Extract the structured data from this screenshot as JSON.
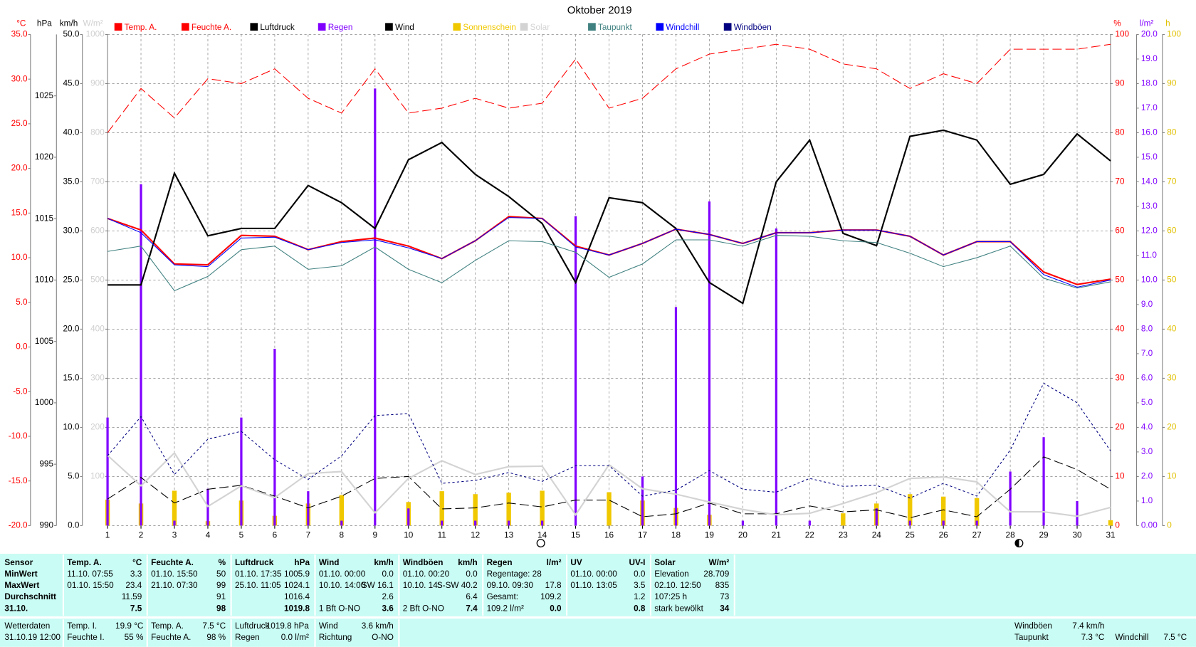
{
  "chart_data": {
    "type": "line",
    "title": "Oktober 2019",
    "categories": [
      "1",
      "2",
      "3",
      "4",
      "5",
      "6",
      "7",
      "8",
      "9",
      "10",
      "11",
      "12",
      "13",
      "14",
      "15",
      "16",
      "17",
      "18",
      "19",
      "20",
      "21",
      "22",
      "23",
      "24",
      "25",
      "26",
      "27",
      "28",
      "29",
      "30",
      "31"
    ],
    "axes": [
      {
        "label": "°C",
        "side": "left",
        "color": "#ff0000",
        "lim": [
          -20,
          35
        ],
        "ticks": [
          {
            "value": -20,
            "label": "-20.0"
          },
          {
            "value": -15,
            "label": "-15.0"
          },
          {
            "value": -10,
            "label": "-10.0"
          },
          {
            "value": -5,
            "label": "-5.0"
          },
          {
            "value": 0,
            "label": "0.0"
          },
          {
            "value": 5,
            "label": "5.0"
          },
          {
            "value": 10,
            "label": "10.0"
          },
          {
            "value": 15,
            "label": "15.0"
          },
          {
            "value": 20,
            "label": "20.0"
          },
          {
            "value": 25,
            "label": "25.0"
          },
          {
            "value": 30,
            "label": "30.0"
          },
          {
            "value": 35,
            "label": "35.0"
          }
        ]
      },
      {
        "label": "hPa",
        "side": "left",
        "color": "#000000",
        "lim": [
          990,
          1030
        ],
        "ticks": [
          990,
          995,
          1000,
          1005,
          1010,
          1015,
          1020,
          1025
        ]
      },
      {
        "label": "km/h",
        "side": "left",
        "color": "#000000",
        "grid": true,
        "lim": [
          0,
          50
        ],
        "ticks": [
          {
            "value": 0,
            "label": "0.0"
          },
          {
            "value": 5,
            "label": "5.0"
          },
          {
            "value": 10,
            "label": "10.0"
          },
          {
            "value": 15,
            "label": "15.0"
          },
          {
            "value": 20,
            "label": "20.0"
          },
          {
            "value": 25,
            "label": "25.0"
          },
          {
            "value": 30,
            "label": "30.0"
          },
          {
            "value": 35,
            "label": "35.0"
          },
          {
            "value": 40,
            "label": "40.0"
          },
          {
            "value": 45,
            "label": "45.0"
          },
          {
            "value": 50,
            "label": "50.0"
          }
        ]
      },
      {
        "label": "W/m²",
        "side": "left",
        "color": "#d0d0d0",
        "lim": [
          0,
          1000
        ],
        "ticks": [
          100,
          200,
          300,
          400,
          500,
          600,
          700,
          800,
          900,
          1000
        ]
      },
      {
        "label": "%",
        "side": "right",
        "color": "#ff0000",
        "lim": [
          0,
          100
        ],
        "ticks": [
          0,
          10,
          20,
          30,
          40,
          50,
          60,
          70,
          80,
          90,
          100
        ]
      },
      {
        "label": "l/m²",
        "side": "right",
        "color": "#8000ff",
        "lim": [
          0,
          20
        ],
        "ticks": [
          {
            "value": 0,
            "label": "0.00"
          },
          {
            "value": 1,
            "label": "1.0"
          },
          {
            "value": 2,
            "label": "2.0"
          },
          {
            "value": 3,
            "label": "3.0"
          },
          {
            "value": 4,
            "label": "4.0"
          },
          {
            "value": 5,
            "label": "5.0"
          },
          {
            "value": 6,
            "label": "6.0"
          },
          {
            "value": 7,
            "label": "7.0"
          },
          {
            "value": 8,
            "label": "8.0"
          },
          {
            "value": 9,
            "label": "9.0"
          },
          {
            "value": 10,
            "label": "10.0"
          },
          {
            "value": 11,
            "label": "11.0"
          },
          {
            "value": 12,
            "label": "12.0"
          },
          {
            "value": 13,
            "label": "13.0"
          },
          {
            "value": 14,
            "label": "14.0"
          },
          {
            "value": 15,
            "label": "15.0"
          },
          {
            "value": 16,
            "label": "16.0"
          },
          {
            "value": 17,
            "label": "17.0"
          },
          {
            "value": 18,
            "label": "18.0"
          },
          {
            "value": 19,
            "label": "19.0"
          },
          {
            "value": 20,
            "label": "20.0"
          }
        ]
      },
      {
        "label": "h",
        "side": "right",
        "color": "#e0c000",
        "lim": [
          0,
          100
        ],
        "ticks": [
          0,
          10,
          20,
          30,
          40,
          50,
          60,
          70,
          80,
          90,
          100
        ]
      }
    ],
    "series": [
      {
        "name": "Temp. A.",
        "color": "#ff0000",
        "axis": "°C",
        "style": "solid",
        "width": 2,
        "values": [
          14.4,
          13.1,
          9.3,
          9.2,
          12.5,
          12.4,
          10.9,
          11.8,
          12.2,
          11.3,
          9.9,
          11.9,
          14.6,
          14.4,
          11.3,
          10.3,
          11.6,
          13.2,
          12.6,
          11.6,
          12.8,
          12.8,
          13.1,
          13.1,
          12.4,
          10.3,
          11.8,
          11.8,
          8.4,
          7.0,
          7.6
        ]
      },
      {
        "name": "Feuchte A.",
        "color": "#ff0000",
        "axis": "%",
        "style": "dashed",
        "width": 1,
        "values": [
          80,
          89,
          83,
          91,
          90,
          93,
          87,
          84,
          93,
          84,
          85,
          87,
          85,
          86,
          95,
          85,
          87,
          93,
          96,
          97,
          98,
          97,
          94,
          93,
          89,
          92,
          90,
          97,
          97,
          97,
          98
        ]
      },
      {
        "name": "Luftdruck",
        "color": "#000000",
        "axis": "hPa",
        "style": "solid",
        "width": 2,
        "values": [
          1009.6,
          1009.6,
          1018.7,
          1013.6,
          1014.2,
          1014.2,
          1017.7,
          1016.3,
          1014.2,
          1019.8,
          1021.2,
          1018.6,
          1016.8,
          1014.6,
          1009.8,
          1016.7,
          1016.3,
          1014.2,
          1009.8,
          1008.1,
          1018.0,
          1021.4,
          1013.8,
          1012.8,
          1021.7,
          1022.2,
          1021.4,
          1017.8,
          1018.6,
          1021.9,
          1019.7
        ]
      },
      {
        "name": "Regen",
        "color": "#8000ff",
        "axis": "l/m²",
        "style": "bar",
        "width": 3,
        "values": [
          4.4,
          13.9,
          0.2,
          1.5,
          4.4,
          7.2,
          1.4,
          0.2,
          17.8,
          0.7,
          0.2,
          0.2,
          0.2,
          0.2,
          12.6,
          0,
          2.0,
          8.9,
          13.2,
          0.2,
          12.1,
          0.2,
          0,
          0.7,
          0.2,
          0.2,
          0.2,
          2.2,
          3.6,
          1.0,
          0
        ]
      },
      {
        "name": "Wind",
        "color": "#000000",
        "axis": "km/h",
        "style": "dashed",
        "width": 1,
        "values": [
          2.7,
          4.9,
          2.3,
          3.7,
          4.1,
          3.0,
          1.8,
          3.0,
          4.8,
          5.0,
          1.7,
          1.8,
          2.3,
          1.9,
          2.6,
          2.6,
          0.9,
          1.2,
          2.3,
          1.2,
          1.2,
          2.0,
          1.4,
          1.6,
          0.8,
          1.6,
          0.9,
          3.7,
          7.0,
          5.7,
          3.7
        ]
      },
      {
        "name": "Sonnenschein",
        "color": "#f0c800",
        "axis": "h",
        "style": "bar",
        "width": 6,
        "values": [
          5.3,
          4.5,
          7.1,
          0.9,
          5.1,
          2.0,
          4.5,
          6.2,
          0,
          4.8,
          7.0,
          6.4,
          6.7,
          7.1,
          0,
          6.8,
          5.1,
          3.6,
          2.2,
          0,
          0,
          0,
          2.5,
          4.5,
          6.4,
          5.9,
          5.6,
          0,
          0,
          0,
          1.1
        ]
      },
      {
        "name": "Solar",
        "color": "#d3d3d3",
        "axis": "W/m²",
        "style": "solid",
        "width": 2,
        "values": [
          143,
          81,
          148,
          39,
          81,
          57,
          106,
          110,
          26,
          96,
          132,
          104,
          120,
          121,
          22,
          124,
          75,
          64,
          48,
          33,
          22,
          25,
          45,
          67,
          96,
          99,
          89,
          28,
          28,
          19,
          37
        ]
      },
      {
        "name": "Taupunkt",
        "color": "#408080",
        "axis": "°C",
        "style": "solid",
        "width": 1,
        "values": [
          10.7,
          11.3,
          6.3,
          7.9,
          10.9,
          11.3,
          8.7,
          9.1,
          11.2,
          8.7,
          7.2,
          9.7,
          11.9,
          11.8,
          10.6,
          7.8,
          9.3,
          12.0,
          12.0,
          11.3,
          12.5,
          12.4,
          11.9,
          11.7,
          10.5,
          9.0,
          10.0,
          11.3,
          7.7,
          6.6,
          7.3
        ]
      },
      {
        "name": "Windchill",
        "color": "#0000ff",
        "axis": "°C",
        "style": "solid",
        "width": 1,
        "values": [
          14.4,
          12.8,
          9.2,
          9.0,
          12.2,
          12.3,
          10.9,
          11.7,
          12.0,
          11.1,
          9.9,
          11.9,
          14.5,
          14.4,
          11.2,
          10.3,
          11.6,
          13.2,
          12.6,
          11.6,
          12.8,
          12.8,
          13.1,
          13.1,
          12.4,
          10.3,
          11.8,
          11.8,
          8.1,
          6.7,
          7.5
        ]
      },
      {
        "name": "Windböen",
        "color": "#000080",
        "axis": "km/h",
        "style": "dotted",
        "width": 1,
        "values": [
          7.1,
          11.1,
          5.2,
          8.8,
          9.6,
          6.7,
          4.7,
          7.1,
          11.2,
          11.4,
          4.3,
          4.6,
          5.4,
          4.5,
          6.1,
          6.1,
          3.0,
          3.6,
          5.6,
          3.7,
          3.4,
          4.8,
          4.0,
          4.1,
          2.8,
          4.3,
          3.0,
          7.7,
          14.5,
          12.5,
          7.6
        ]
      }
    ]
  },
  "stats": {
    "label_column": [
      "Sensor",
      "MinWert",
      "MaxWert",
      "Durchschnitt",
      "31.10."
    ],
    "groups": [
      {
        "title": "Temp. A.",
        "unit": "°C",
        "rows": [
          [
            "11.10.  07:55",
            "3.3"
          ],
          [
            "01.10.  15:50",
            "23.4"
          ],
          [
            "11.59"
          ],
          [
            "7.5"
          ]
        ]
      },
      {
        "title": "Feuchte A.",
        "unit": "%",
        "rows": [
          [
            "01.10.  15:50",
            "50"
          ],
          [
            "21.10.  07:30",
            "99"
          ],
          [
            "91"
          ],
          [
            "98"
          ]
        ]
      },
      {
        "title": "Luftdruck",
        "unit": "hPa",
        "rows": [
          [
            "01.10.  17:35",
            "1005.9"
          ],
          [
            "25.10.  11:05",
            "1024.1"
          ],
          [
            "1016.4"
          ],
          [
            "1019.8"
          ]
        ]
      },
      {
        "title": "Wind",
        "unit": "km/h",
        "rows": [
          [
            "01.10.  00:00",
            "0.0"
          ],
          [
            "10.10.  14:00",
            "SW 16.1"
          ],
          [
            "2.6"
          ],
          [
            "1 Bft O-NO",
            "3.6"
          ]
        ]
      },
      {
        "title": "Windböen",
        "unit": "km/h",
        "rows": [
          [
            "01.10.  00:20",
            "0.0"
          ],
          [
            "10.10.  14:",
            "S-SW 40.2"
          ],
          [
            "6.4"
          ],
          [
            "2 Bft O-NO",
            "7.4"
          ]
        ]
      },
      {
        "title": "Regen",
        "unit": "l/m²",
        "rows": [
          [
            "Regentage: 28"
          ],
          [
            "09.10.  09:30",
            "17.8"
          ],
          [
            "Gesamt:",
            "109.2"
          ],
          [
            "109.2 l/m²",
            "0.0"
          ]
        ]
      },
      {
        "title": "UV",
        "unit": "UV-I",
        "rows": [
          [
            "01.10.  00:00",
            "0.0"
          ],
          [
            "01.10.  13:05",
            "3.5"
          ],
          [
            "1.2"
          ],
          [
            "0.8"
          ]
        ]
      },
      {
        "title": "Solar",
        "unit": "W/m²",
        "rows": [
          [
            "Elevation",
            "28.709"
          ],
          [
            "02.10.  12:50",
            "835"
          ],
          [
            "107:25 h",
            "73"
          ],
          [
            "stark bewölkt",
            "34"
          ]
        ]
      }
    ]
  },
  "current": [
    [
      [
        "Wetterdaten"
      ],
      [
        "31.10.19 12:00"
      ]
    ],
    [
      [
        "Temp. I.",
        "19.9 °C"
      ],
      [
        "Feuchte I.",
        "55 %"
      ]
    ],
    [
      [
        "Temp. A.",
        "7.5 °C"
      ],
      [
        "Feuchte A.",
        "98 %"
      ]
    ],
    [
      [
        "Luftdruck",
        "1019.8 hPa"
      ],
      [
        "Regen",
        "0.0 l/m²"
      ]
    ],
    [
      [
        "Wind",
        "3.6 km/h"
      ],
      [
        "Richtung",
        "O-NO"
      ]
    ],
    [
      [
        "Windböen",
        "7.4 km/h"
      ],
      [
        "Taupunkt",
        "7.3 °C"
      ]
    ],
    [
      null,
      [
        "Windchill",
        "7.5 °C"
      ]
    ]
  ]
}
